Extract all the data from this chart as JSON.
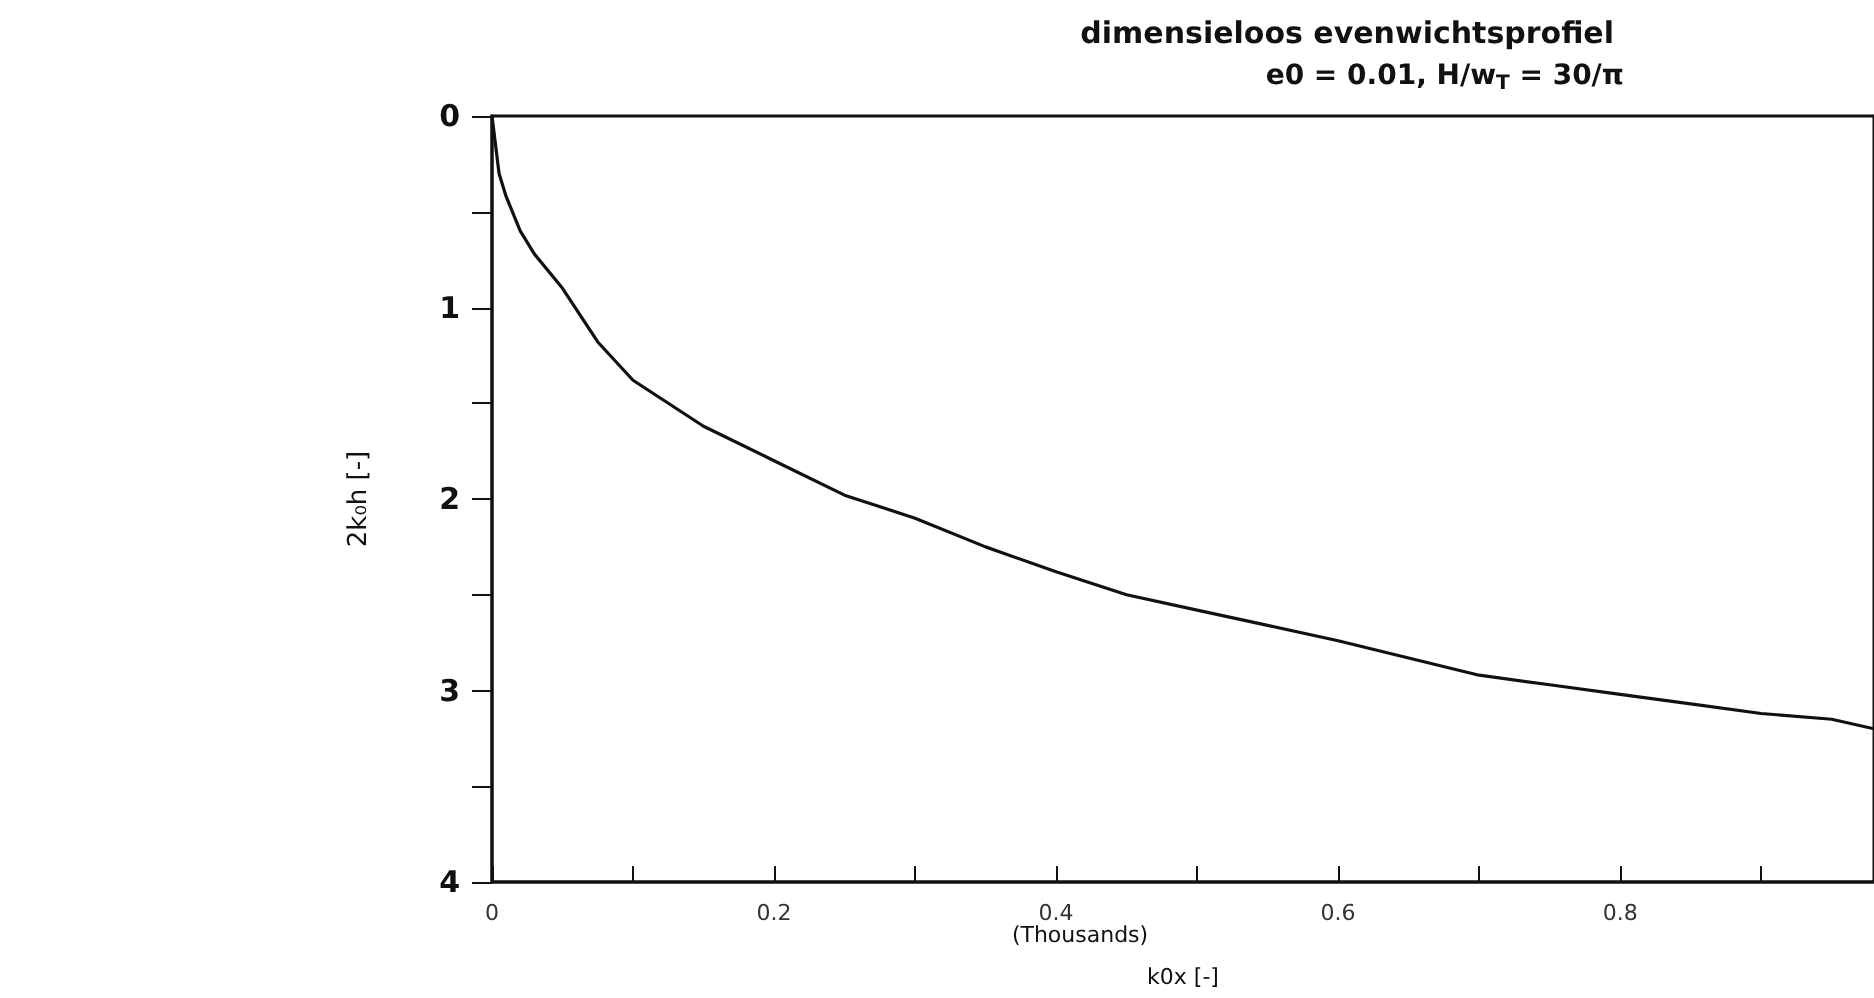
{
  "chart_data": {
    "type": "line",
    "title": "dimensieloos evenwichtsprofiel",
    "subtitle": "e0 = 0.01, H/w$_{T}$ = 30/π",
    "xlabel": "k0x [-]",
    "ylabel": "2k₀h [-]",
    "annotations": [
      "(Thousands)"
    ],
    "x": [
      0,
      0.005,
      0.01,
      0.02,
      0.03,
      0.05,
      0.075,
      0.1,
      0.15,
      0.2,
      0.25,
      0.3,
      0.35,
      0.4,
      0.45,
      0.5,
      0.55,
      0.6,
      0.65,
      0.7,
      0.75,
      0.8,
      0.85,
      0.9,
      0.95,
      0.98
    ],
    "series": [
      {
        "color": "#111111",
        "values": [
          0,
          0.3,
          0.42,
          0.6,
          0.72,
          0.9,
          1.18,
          1.38,
          1.62,
          1.8,
          1.98,
          2.1,
          2.25,
          2.38,
          2.5,
          2.58,
          2.66,
          2.74,
          2.83,
          2.92,
          2.97,
          3.02,
          3.07,
          3.12,
          3.15,
          3.2
        ]
      }
    ],
    "xlim": [
      0,
      0.98
    ],
    "xticks": [
      0,
      {
        "value": 0.1,
        "label": null
      },
      0.2,
      {
        "value": 0.3,
        "label": null
      },
      0.4,
      {
        "value": 0.5,
        "label": null
      },
      0.6,
      {
        "value": 0.7,
        "label": null
      },
      0.8,
      {
        "value": 0.9,
        "label": null
      }
    ],
    "ylim": [
      4,
      0
    ],
    "yticks": [
      0,
      {
        "value": 0.5,
        "label": null
      },
      1,
      {
        "value": 1.5,
        "label": null
      },
      2,
      {
        "value": 2.5,
        "label": null
      },
      3,
      {
        "value": 3.5,
        "label": null
      },
      4
    ],
    "grid": false,
    "marker": "none",
    "line_style": "solid"
  }
}
